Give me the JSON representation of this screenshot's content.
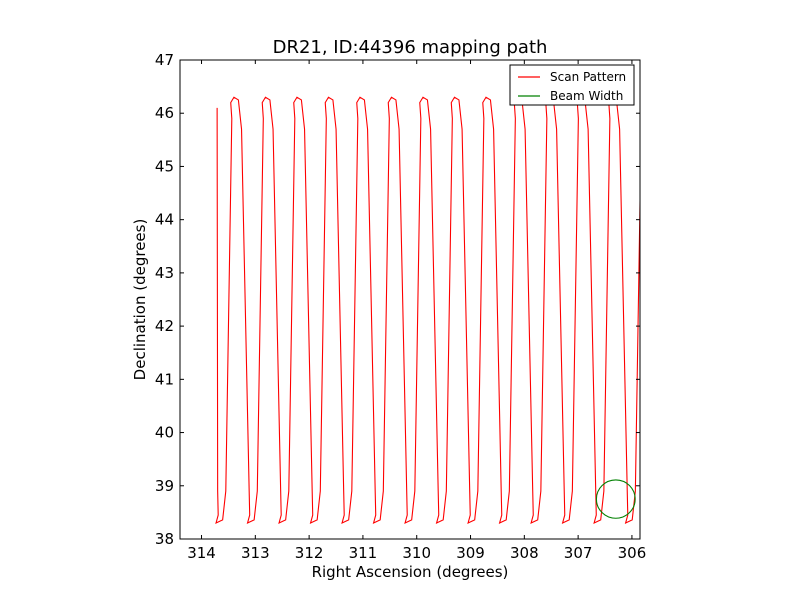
{
  "chart_data": {
    "type": "line",
    "title": "DR21, ID:44396 mapping path",
    "xlabel": "Right Ascension (degrees)",
    "ylabel": "Declination (degrees)",
    "xlim": [
      314.4,
      305.85
    ],
    "ylim": [
      38,
      47
    ],
    "x_inverted": true,
    "x_ticks": [
      314,
      313,
      312,
      311,
      310,
      309,
      308,
      307,
      306
    ],
    "y_ticks": [
      38,
      39,
      40,
      41,
      42,
      43,
      44,
      45,
      46,
      47
    ],
    "grid": false,
    "legend_position": "top-right",
    "series": [
      {
        "name": "Scan Pattern",
        "color": "#ff0000",
        "scan": {
          "start": [
            313.71,
            46.1
          ],
          "ra_start": 313.71,
          "ra_step": 0.2928,
          "legs": 29,
          "dec_low": 38.3,
          "dec_high": 46.3
        }
      },
      {
        "name": "Beam Width",
        "color": "#008000",
        "circle": {
          "center": [
            306.3,
            38.75
          ],
          "radius_ra": 0.36,
          "radius_dec": 0.36
        }
      }
    ]
  }
}
